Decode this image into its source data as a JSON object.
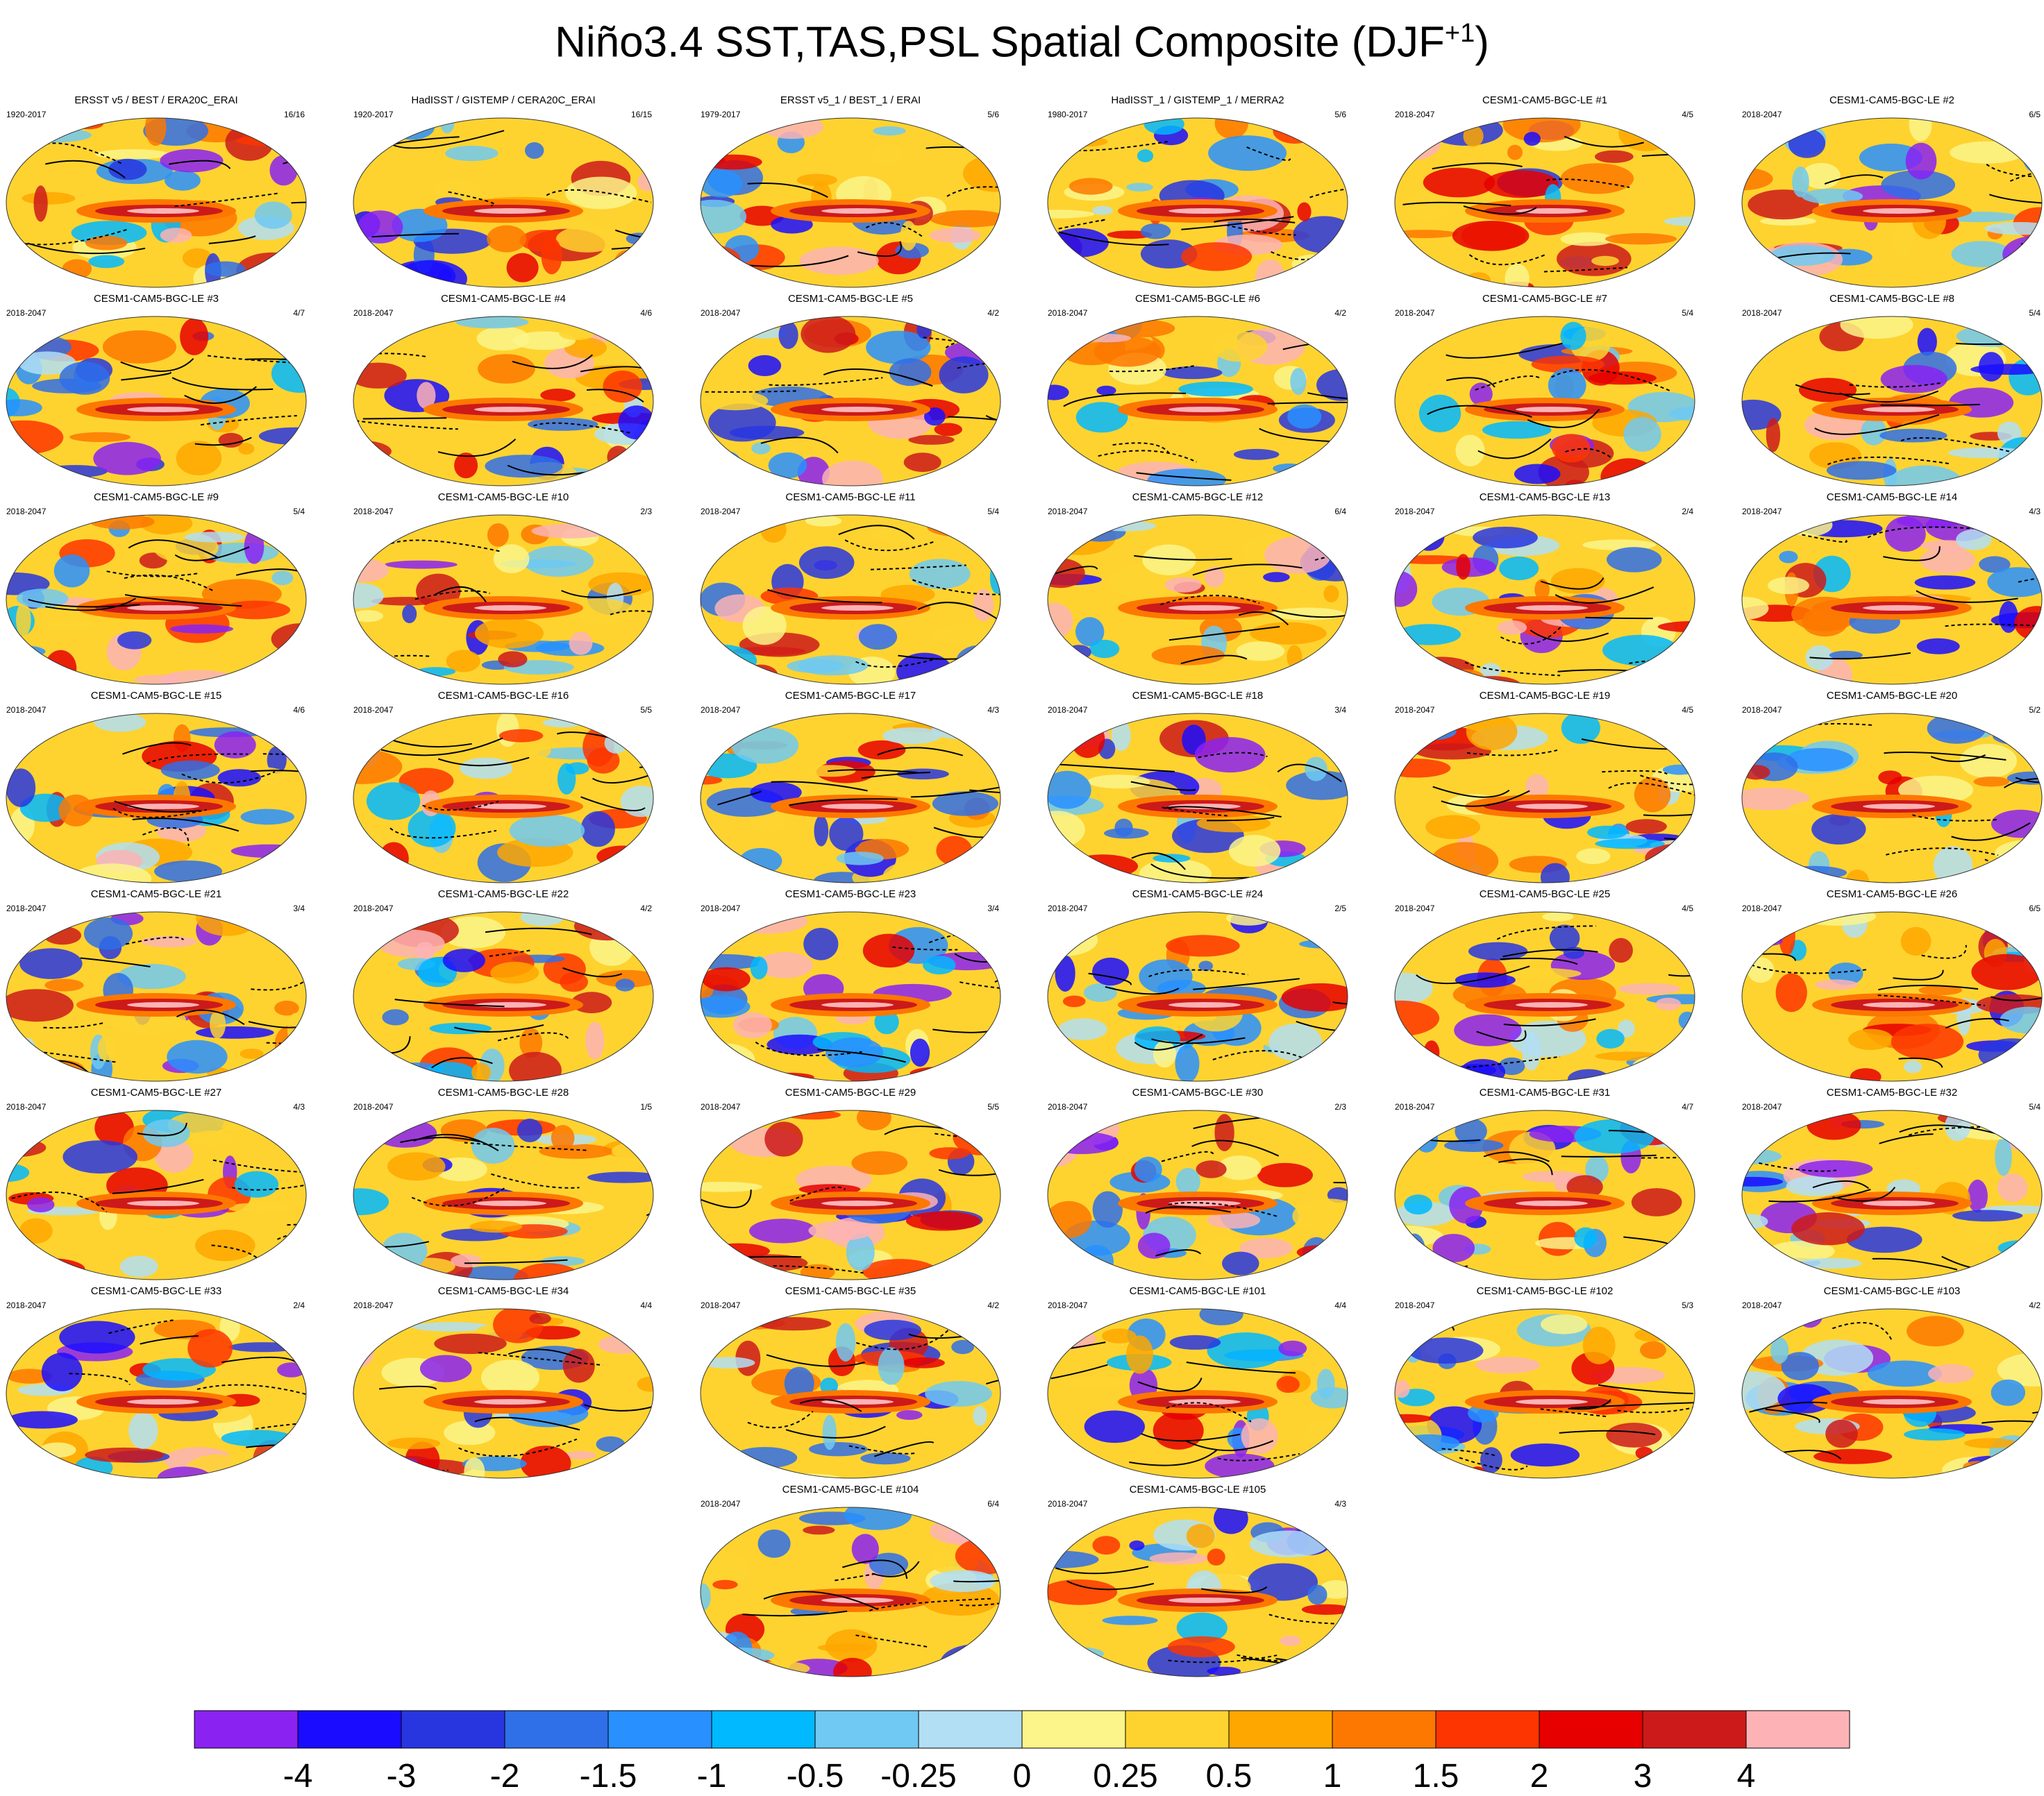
{
  "title": "Niño3.4 SST,TAS,PSL Spatial Composite (DJF",
  "title_sup": "+1",
  "title_close": ")",
  "panels": [
    {
      "title": "ERSST v5 / BEST / ERA20C_ERAI",
      "years": "1920-2017",
      "count": "16/16"
    },
    {
      "title": "HadISST / GISTEMP / CERA20C_ERAI",
      "years": "1920-2017",
      "count": "16/15"
    },
    {
      "title": "ERSST v5_1 / BEST_1 / ERAI",
      "years": "1979-2017",
      "count": "5/6"
    },
    {
      "title": "HadISST_1 / GISTEMP_1 / MERRA2",
      "years": "1980-2017",
      "count": "5/6"
    },
    {
      "title": "CESM1-CAM5-BGC-LE #1",
      "years": "2018-2047",
      "count": "4/5"
    },
    {
      "title": "CESM1-CAM5-BGC-LE #2",
      "years": "2018-2047",
      "count": "6/5"
    },
    {
      "title": "CESM1-CAM5-BGC-LE #3",
      "years": "2018-2047",
      "count": "4/7"
    },
    {
      "title": "CESM1-CAM5-BGC-LE #4",
      "years": "2018-2047",
      "count": "4/6"
    },
    {
      "title": "CESM1-CAM5-BGC-LE #5",
      "years": "2018-2047",
      "count": "4/2"
    },
    {
      "title": "CESM1-CAM5-BGC-LE #6",
      "years": "2018-2047",
      "count": "4/2"
    },
    {
      "title": "CESM1-CAM5-BGC-LE #7",
      "years": "2018-2047",
      "count": "5/4"
    },
    {
      "title": "CESM1-CAM5-BGC-LE #8",
      "years": "2018-2047",
      "count": "5/4"
    },
    {
      "title": "CESM1-CAM5-BGC-LE #9",
      "years": "2018-2047",
      "count": "5/4"
    },
    {
      "title": "CESM1-CAM5-BGC-LE #10",
      "years": "2018-2047",
      "count": "2/3"
    },
    {
      "title": "CESM1-CAM5-BGC-LE #11",
      "years": "2018-2047",
      "count": "5/4"
    },
    {
      "title": "CESM1-CAM5-BGC-LE #12",
      "years": "2018-2047",
      "count": "6/4"
    },
    {
      "title": "CESM1-CAM5-BGC-LE #13",
      "years": "2018-2047",
      "count": "2/4"
    },
    {
      "title": "CESM1-CAM5-BGC-LE #14",
      "years": "2018-2047",
      "count": "4/3"
    },
    {
      "title": "CESM1-CAM5-BGC-LE #15",
      "years": "2018-2047",
      "count": "4/6"
    },
    {
      "title": "CESM1-CAM5-BGC-LE #16",
      "years": "2018-2047",
      "count": "5/5"
    },
    {
      "title": "CESM1-CAM5-BGC-LE #17",
      "years": "2018-2047",
      "count": "4/3"
    },
    {
      "title": "CESM1-CAM5-BGC-LE #18",
      "years": "2018-2047",
      "count": "3/4"
    },
    {
      "title": "CESM1-CAM5-BGC-LE #19",
      "years": "2018-2047",
      "count": "4/5"
    },
    {
      "title": "CESM1-CAM5-BGC-LE #20",
      "years": "2018-2047",
      "count": "5/2"
    },
    {
      "title": "CESM1-CAM5-BGC-LE #21",
      "years": "2018-2047",
      "count": "3/4"
    },
    {
      "title": "CESM1-CAM5-BGC-LE #22",
      "years": "2018-2047",
      "count": "4/2"
    },
    {
      "title": "CESM1-CAM5-BGC-LE #23",
      "years": "2018-2047",
      "count": "3/4"
    },
    {
      "title": "CESM1-CAM5-BGC-LE #24",
      "years": "2018-2047",
      "count": "2/5"
    },
    {
      "title": "CESM1-CAM5-BGC-LE #25",
      "years": "2018-2047",
      "count": "4/5"
    },
    {
      "title": "CESM1-CAM5-BGC-LE #26",
      "years": "2018-2047",
      "count": "6/5"
    },
    {
      "title": "CESM1-CAM5-BGC-LE #27",
      "years": "2018-2047",
      "count": "4/3"
    },
    {
      "title": "CESM1-CAM5-BGC-LE #28",
      "years": "2018-2047",
      "count": "1/5"
    },
    {
      "title": "CESM1-CAM5-BGC-LE #29",
      "years": "2018-2047",
      "count": "5/5"
    },
    {
      "title": "CESM1-CAM5-BGC-LE #30",
      "years": "2018-2047",
      "count": "2/3"
    },
    {
      "title": "CESM1-CAM5-BGC-LE #31",
      "years": "2018-2047",
      "count": "4/7"
    },
    {
      "title": "CESM1-CAM5-BGC-LE #32",
      "years": "2018-2047",
      "count": "5/4"
    },
    {
      "title": "CESM1-CAM5-BGC-LE #33",
      "years": "2018-2047",
      "count": "2/4"
    },
    {
      "title": "CESM1-CAM5-BGC-LE #34",
      "years": "2018-2047",
      "count": "4/4"
    },
    {
      "title": "CESM1-CAM5-BGC-LE #35",
      "years": "2018-2047",
      "count": "4/2"
    },
    {
      "title": "CESM1-CAM5-BGC-LE #101",
      "years": "2018-2047",
      "count": "4/4"
    },
    {
      "title": "CESM1-CAM5-BGC-LE #102",
      "years": "2018-2047",
      "count": "5/3"
    },
    {
      "title": "CESM1-CAM5-BGC-LE #103",
      "years": "2018-2047",
      "count": "4/2"
    },
    {
      "title": "CESM1-CAM5-BGC-LE #104",
      "years": "2018-2047",
      "count": "6/4"
    },
    {
      "title": "CESM1-CAM5-BGC-LE #105",
      "years": "2018-2047",
      "count": "4/3"
    }
  ],
  "colorbar": {
    "colors": [
      "#8a22f2",
      "#1a0dff",
      "#2836e0",
      "#2f6fe8",
      "#2890ff",
      "#00b9ff",
      "#6fc9f2",
      "#b2dff4",
      "#fbf58a",
      "#fed330",
      "#fea700",
      "#fd7800",
      "#fd3500",
      "#e60000",
      "#cc1a1a",
      "#fdb3b5"
    ],
    "labels": [
      "-4",
      "-3",
      "-2",
      "-1.5",
      "-1",
      "-0.5",
      "-0.25",
      "0",
      "0.25",
      "0.5",
      "1",
      "1.5",
      "2",
      "3",
      "4"
    ]
  },
  "chart_data": {
    "type": "heatmap",
    "title": "Niño3.4 SST,TAS,PSL Spatial Composite (DJF+1)",
    "panel_count": 44,
    "layout": "grid of global map panels",
    "map_projection": "Robinson-like global ellipse",
    "contours": "PSL contours, solid positive, dashed negative",
    "colorbar_levels": [
      -4,
      -3,
      -2,
      -1.5,
      -1,
      -0.5,
      -0.25,
      0,
      0.25,
      0.5,
      1,
      1.5,
      2,
      3,
      4
    ],
    "colorbar_orientation": "horizontal, bottom"
  }
}
